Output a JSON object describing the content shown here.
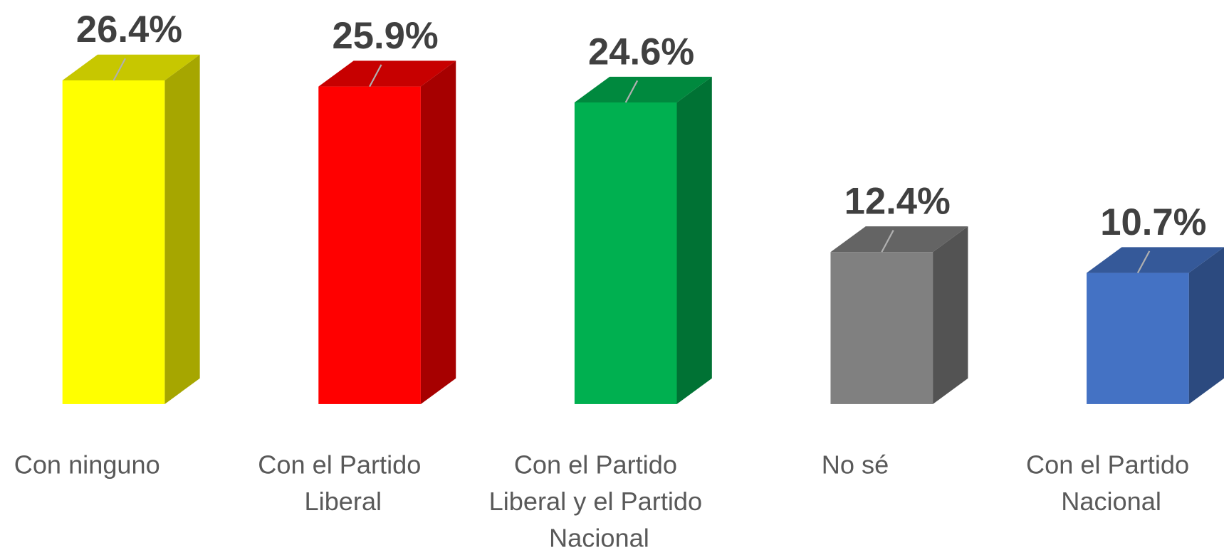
{
  "chart_data": {
    "type": "bar3d",
    "categories": [
      "Con ninguno",
      "Con el Partido Liberal",
      "Con el Partido Liberal y el Partido Nacional",
      "No sé",
      "Con el Partido Nacional"
    ],
    "values": [
      26.4,
      25.9,
      24.6,
      12.4,
      10.7
    ],
    "value_labels": [
      "26.4%",
      "25.9%",
      "24.6%",
      "12.4%",
      "10.7%"
    ],
    "colors": [
      "#ffff00",
      "#ff0000",
      "#00b050",
      "#808080",
      "#4472c4"
    ]
  }
}
